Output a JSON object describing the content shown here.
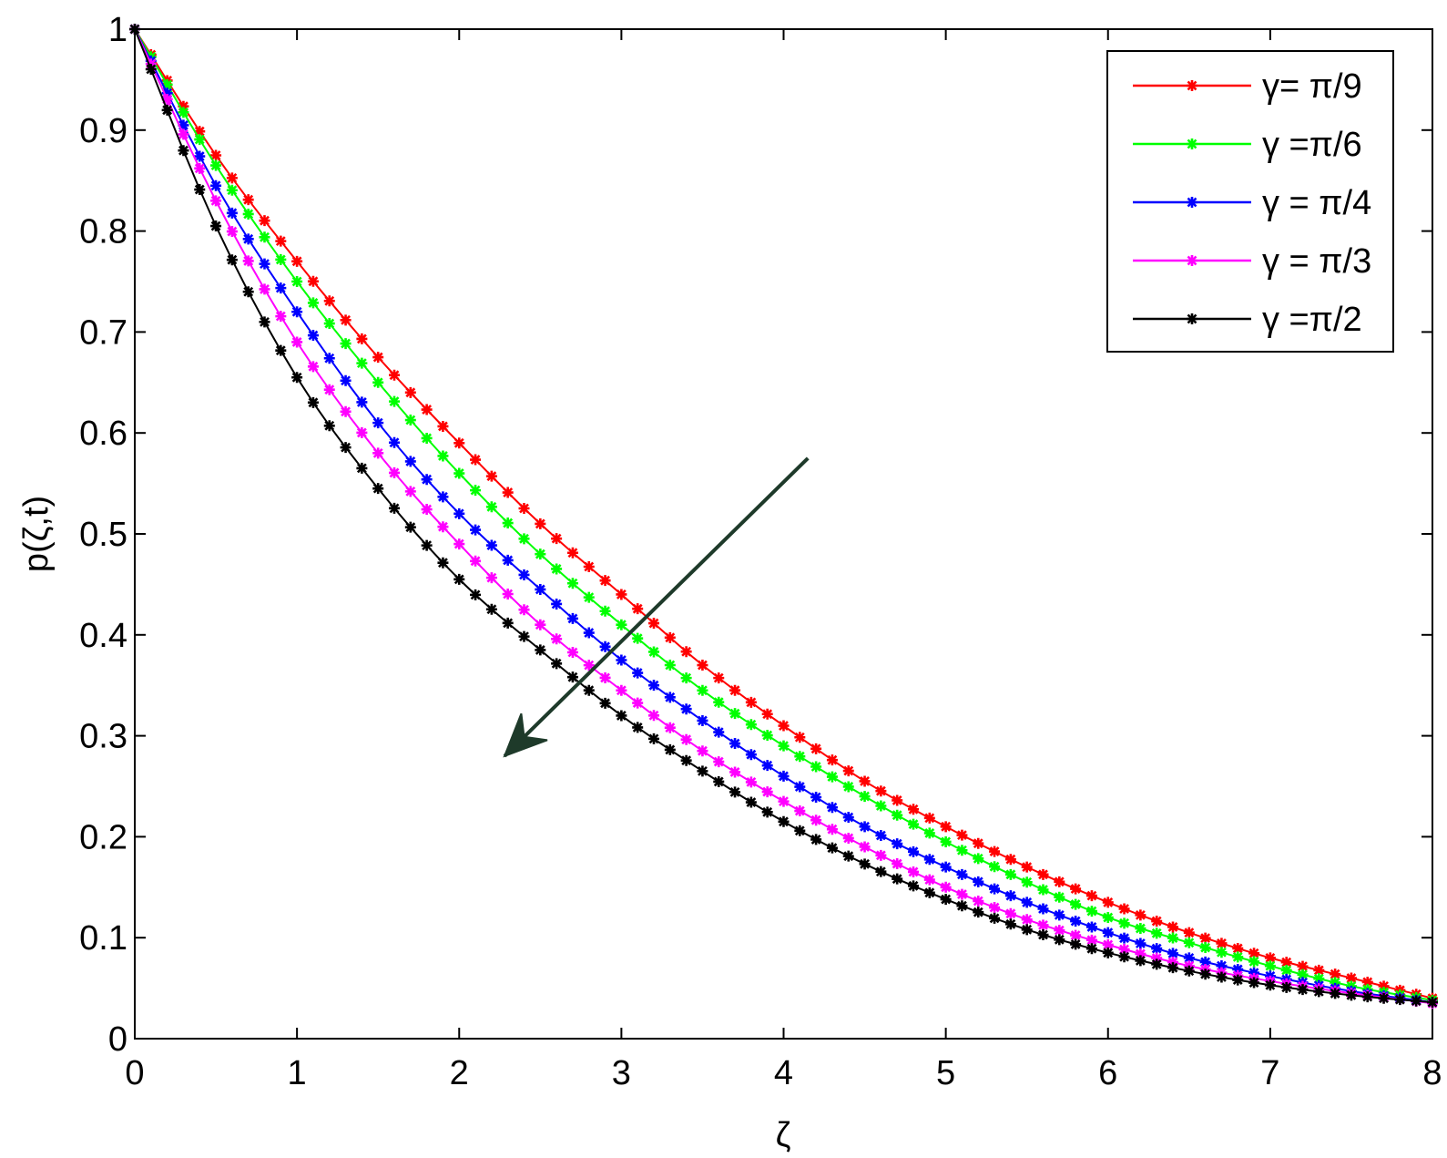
{
  "chart_data": {
    "type": "line",
    "xlabel": "ζ",
    "ylabel": "p(ζ,t)",
    "xlim": [
      0,
      8
    ],
    "ylim": [
      0,
      1
    ],
    "xticks": [
      "0",
      "1",
      "2",
      "3",
      "4",
      "5",
      "6",
      "7",
      "8"
    ],
    "yticks": [
      "0",
      "0.1",
      "0.2",
      "0.3",
      "0.4",
      "0.5",
      "0.6",
      "0.7",
      "0.8",
      "0.9",
      "1"
    ],
    "grid": false,
    "legend_position": "top-right",
    "marker": "star",
    "x": [
      0,
      0.5,
      1,
      1.5,
      2,
      2.5,
      3,
      3.5,
      4,
      4.5,
      5,
      5.5,
      6,
      6.5,
      7,
      7.5,
      8
    ],
    "series": [
      {
        "name": "γ= π/9",
        "color": "#ff0000",
        "values": [
          1.0,
          0.875,
          0.77,
          0.675,
          0.59,
          0.51,
          0.44,
          0.37,
          0.31,
          0.255,
          0.21,
          0.17,
          0.135,
          0.105,
          0.08,
          0.06,
          0.04
        ]
      },
      {
        "name": "γ =π/6",
        "color": "#00ff00",
        "values": [
          1.0,
          0.865,
          0.75,
          0.65,
          0.56,
          0.48,
          0.41,
          0.345,
          0.29,
          0.24,
          0.195,
          0.155,
          0.12,
          0.095,
          0.072,
          0.052,
          0.038
        ]
      },
      {
        "name": "γ = π/4",
        "color": "#0000ff",
        "values": [
          1.0,
          0.845,
          0.72,
          0.61,
          0.52,
          0.445,
          0.375,
          0.315,
          0.26,
          0.21,
          0.17,
          0.135,
          0.105,
          0.08,
          0.062,
          0.047,
          0.036
        ]
      },
      {
        "name": "γ = π/3",
        "color": "#ff00ff",
        "values": [
          1.0,
          0.83,
          0.69,
          0.58,
          0.49,
          0.41,
          0.345,
          0.285,
          0.235,
          0.19,
          0.15,
          0.118,
          0.093,
          0.072,
          0.057,
          0.045,
          0.035
        ]
      },
      {
        "name": "γ =π/2",
        "color": "#000000",
        "values": [
          1.0,
          0.805,
          0.655,
          0.545,
          0.455,
          0.385,
          0.32,
          0.265,
          0.215,
          0.173,
          0.138,
          0.108,
          0.085,
          0.067,
          0.053,
          0.043,
          0.036
        ]
      }
    ],
    "annotations": [
      {
        "type": "arrow",
        "from": [
          4.15,
          0.575
        ],
        "to": [
          2.28,
          0.28
        ],
        "color": "#1e3a2a"
      }
    ]
  }
}
